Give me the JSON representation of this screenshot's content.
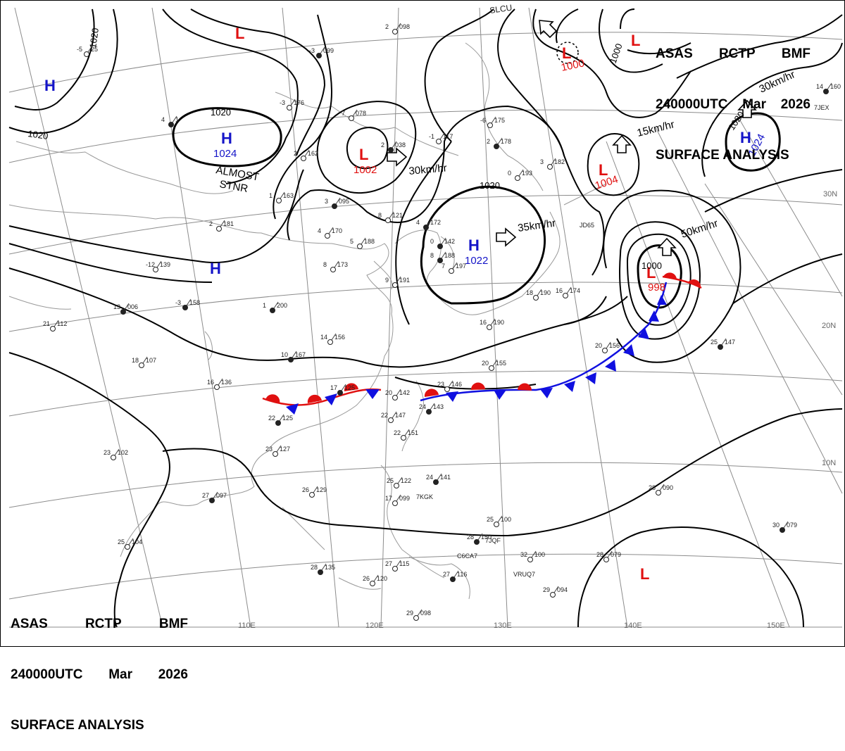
{
  "header": {
    "line1": [
      "ASAS",
      "RCTP",
      "BMF"
    ],
    "line2": [
      "240000UTC",
      "Mar",
      "2026"
    ],
    "line3": "SURFACE ANALYSIS"
  },
  "colors": {
    "high": "#1414c8",
    "low": "#e01010",
    "isobar": "#000000",
    "grid": "#8c8c8c",
    "coast": "#a0a0a0",
    "cold_front": "#1010e0",
    "warm_front": "#e01010"
  },
  "lon_labels": [
    "110E",
    "120E",
    "130E",
    "140E",
    "150E"
  ],
  "lat_labels": [
    "30N",
    "20N",
    "10N"
  ],
  "pressure_centers": [
    {
      "id": "h-nw",
      "type": "H",
      "pressure": ""
    },
    {
      "id": "h-mongolia",
      "type": "H",
      "pressure": "1024"
    },
    {
      "id": "h-china",
      "type": "H",
      "pressure": ""
    },
    {
      "id": "h-korea",
      "type": "H",
      "pressure": "1022"
    },
    {
      "id": "h-ne",
      "type": "H",
      "pressure": "1024"
    },
    {
      "id": "l-north",
      "type": "L",
      "pressure": ""
    },
    {
      "id": "l-mongolia",
      "type": "L",
      "pressure": "1002"
    },
    {
      "id": "l-okhotsk",
      "type": "L",
      "pressure": "1000"
    },
    {
      "id": "l-okhotsk2",
      "type": "L",
      "pressure": ""
    },
    {
      "id": "l-japan",
      "type": "L",
      "pressure": "1004"
    },
    {
      "id": "l-pacific",
      "type": "L",
      "pressure": "998"
    },
    {
      "id": "l-south",
      "type": "L",
      "pressure": ""
    }
  ],
  "isobar_labels": [
    "1020",
    "1020",
    "1020",
    "1020",
    "1000",
    "1000",
    "1020"
  ],
  "annotations": {
    "stationary": [
      "ALMOST",
      "STNR"
    ],
    "motions": [
      "30km/hr",
      "35km/hr",
      "15km/hr",
      "50km/hr",
      "30km/hr"
    ]
  },
  "station_reports": [
    {
      "t": "4",
      "v": "1"
    },
    {
      "t": "2",
      "v": "098"
    },
    {
      "t": "-5",
      "v": "25"
    },
    {
      "t": "-3",
      "v": "099"
    },
    {
      "t": "-3",
      "v": "176"
    },
    {
      "t": "7",
      "v": "078"
    },
    {
      "t": "2",
      "v": "038"
    },
    {
      "t": "-1",
      "v": "117"
    },
    {
      "t": "-6",
      "v": "175"
    },
    {
      "t": "2",
      "v": "178"
    },
    {
      "t": "0",
      "v": "193"
    },
    {
      "t": "3",
      "v": "182"
    },
    {
      "t": "0",
      "v": "142"
    },
    {
      "t": "2",
      "v": "162"
    },
    {
      "t": "1",
      "v": "163"
    },
    {
      "t": "3",
      "v": "095"
    },
    {
      "t": "2",
      "v": "181"
    },
    {
      "t": "8",
      "v": "121"
    },
    {
      "t": "4",
      "v": "172"
    },
    {
      "t": "4",
      "v": "170"
    },
    {
      "t": "5",
      "v": "188"
    },
    {
      "t": "8",
      "v": "188"
    },
    {
      "t": "8",
      "v": "173"
    },
    {
      "t": "-12",
      "v": "139"
    },
    {
      "t": "-3",
      "v": "158"
    },
    {
      "t": "9",
      "v": "191"
    },
    {
      "t": "7",
      "v": "197"
    },
    {
      "t": "1",
      "v": "200"
    },
    {
      "t": "21",
      "v": "112"
    },
    {
      "t": "14",
      "v": "156"
    },
    {
      "t": "10",
      "v": "167"
    },
    {
      "t": "18",
      "v": "107"
    },
    {
      "t": "16",
      "v": "136"
    },
    {
      "t": "17",
      "v": "125"
    },
    {
      "t": "20",
      "v": "142"
    },
    {
      "t": "23",
      "v": "146"
    },
    {
      "t": "24",
      "v": "143"
    },
    {
      "t": "22",
      "v": "147"
    },
    {
      "t": "22",
      "v": "151"
    },
    {
      "t": "22",
      "v": "125"
    },
    {
      "t": "23",
      "v": "127"
    },
    {
      "t": "23",
      "v": "102"
    },
    {
      "t": "27",
      "v": "097"
    },
    {
      "t": "26",
      "v": "129"
    },
    {
      "t": "25",
      "v": "122"
    },
    {
      "t": "24",
      "v": "141"
    },
    {
      "t": "17",
      "v": "099"
    },
    {
      "t": "25",
      "v": "100"
    },
    {
      "t": "28",
      "v": "150"
    },
    {
      "t": "32",
      "v": "100"
    },
    {
      "t": "25",
      "v": "104"
    },
    {
      "t": "28",
      "v": "135"
    },
    {
      "t": "26",
      "v": "120"
    },
    {
      "t": "27",
      "v": "115"
    },
    {
      "t": "27",
      "v": "116"
    },
    {
      "t": "29",
      "v": "098"
    },
    {
      "t": "28",
      "v": "090"
    },
    {
      "t": "30",
      "v": "079"
    },
    {
      "t": "28",
      "v": "079"
    },
    {
      "t": "29",
      "v": "094"
    },
    {
      "t": "25",
      "v": "147"
    },
    {
      "t": "20",
      "v": "156"
    },
    {
      "t": "16",
      "v": "174"
    },
    {
      "t": "14",
      "v": "160"
    },
    {
      "t": "18",
      "v": "190"
    },
    {
      "t": "20",
      "v": "155"
    },
    {
      "t": "13",
      "v": "006"
    },
    {
      "t": "16",
      "v": "190"
    }
  ],
  "station_ids": [
    "7KGK",
    "7JQF",
    "C6CA7",
    "VRUQ7",
    "7JEX",
    "JD65",
    "SLCU"
  ]
}
